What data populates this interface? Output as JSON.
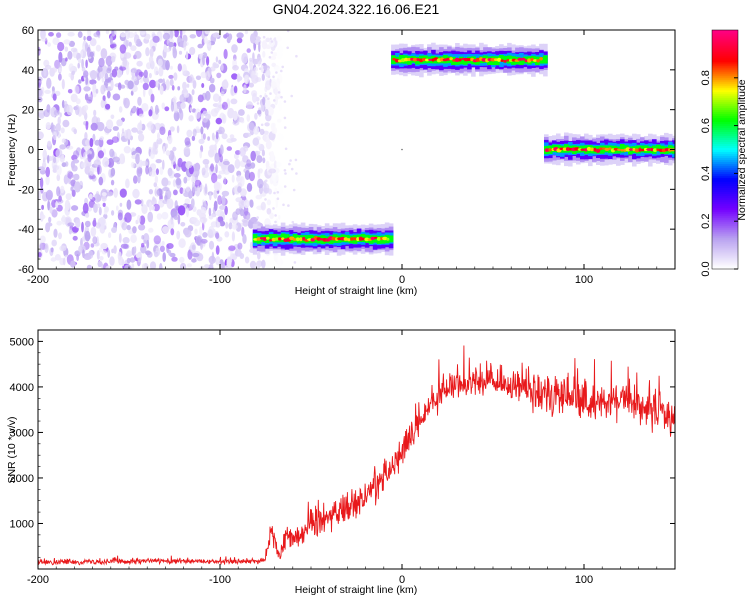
{
  "figure": {
    "title": "GN04.2024.322.16.06.E21"
  },
  "chart_data": [
    {
      "type": "heatmap",
      "name": "spectrogram",
      "xlabel": "Height of straight line (km)",
      "ylabel": "Frequency (Hz)",
      "xlim": [
        -200,
        150
      ],
      "ylim": [
        -60,
        60
      ],
      "xticks": [
        -200,
        -100,
        0,
        100
      ],
      "yticks": [
        -60,
        -40,
        -20,
        0,
        20,
        40,
        60
      ],
      "colorbar": {
        "label": "Normalized spectral amplitude",
        "range": [
          0,
          1
        ],
        "ticks": [
          0.0,
          0.2,
          0.4,
          0.6,
          0.8
        ],
        "colormap": [
          "#ffffff",
          "#b9a2f0",
          "#7300ff",
          "#0000ff",
          "#00ffff",
          "#00ff00",
          "#ffff00",
          "#ff0000",
          "#ff0080"
        ]
      },
      "noise_region": {
        "x": [
          -200,
          -80
        ],
        "y": [
          -60,
          60
        ],
        "level": 0.05
      },
      "tracks": [
        {
          "x_start": -82,
          "x_end": -6,
          "freq": -45,
          "width": 3.5,
          "peak": 0.95
        },
        {
          "x_start": -6,
          "x_end": 78,
          "freq": 45,
          "width": 3.5,
          "peak": 0.95
        },
        {
          "x_start": 78,
          "x_end": 150,
          "freq": 0,
          "width": 3.5,
          "peak": 0.95
        }
      ]
    },
    {
      "type": "line",
      "name": "snr",
      "xlabel": "Height of straight line (km)",
      "ylabel": "SNR (10 * v/v)",
      "xlim": [
        -200,
        150
      ],
      "ylim": [
        0,
        5250
      ],
      "xticks": [
        -200,
        -100,
        0,
        100
      ],
      "yticks": [
        1000,
        2000,
        3000,
        4000,
        5000
      ],
      "series": [
        {
          "color": "#e8191b",
          "x": [
            -200,
            -180,
            -160,
            -140,
            -120,
            -100,
            -90,
            -80,
            -75,
            -72,
            -70,
            -67,
            -64,
            -62,
            -60,
            -55,
            -50,
            -40,
            -30,
            -20,
            -10,
            0,
            10,
            20,
            30,
            40,
            50,
            60,
            70,
            80,
            90,
            100,
            110,
            120,
            130,
            140,
            150
          ],
          "mean": [
            150,
            160,
            165,
            170,
            165,
            160,
            160,
            170,
            200,
            900,
            600,
            250,
            700,
            800,
            700,
            800,
            1000,
            1150,
            1350,
            1600,
            2050,
            2550,
            3250,
            3800,
            4050,
            4150,
            4100,
            4000,
            3950,
            3800,
            3750,
            3650,
            3650,
            3750,
            3550,
            3500,
            3400
          ],
          "noise": [
            70,
            70,
            75,
            75,
            70,
            70,
            70,
            70,
            80,
            300,
            250,
            100,
            300,
            350,
            300,
            350,
            400,
            400,
            430,
            450,
            450,
            450,
            450,
            400,
            400,
            380,
            380,
            400,
            450,
            500,
            550,
            550,
            500,
            500,
            500,
            500,
            550
          ]
        }
      ]
    }
  ]
}
